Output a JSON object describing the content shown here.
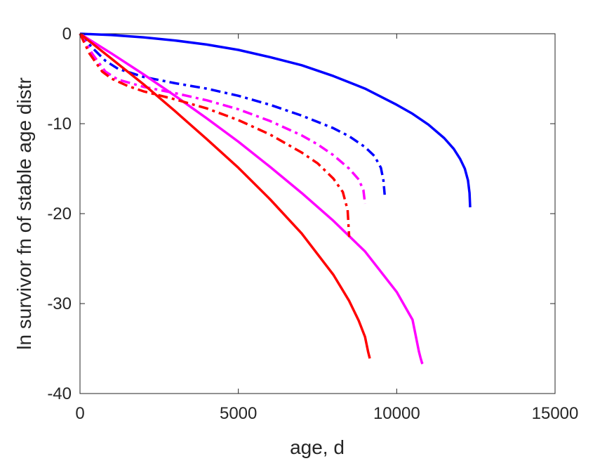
{
  "chart_data": {
    "type": "line",
    "title": "",
    "xlabel": "age, d",
    "ylabel": "ln survivor fn of stable age distr",
    "xlim": [
      0,
      15000
    ],
    "ylim": [
      -40,
      0
    ],
    "xticks": [
      0,
      5000,
      10000,
      15000
    ],
    "yticks": [
      -40,
      -30,
      -20,
      -10,
      0
    ],
    "xtick_labels": [
      "0",
      "5000",
      "10000",
      "15000"
    ],
    "ytick_labels": [
      "-40",
      "-30",
      "-20",
      "-10",
      "0"
    ],
    "grid": false,
    "legend": "none",
    "series": [
      {
        "color": "#0000ff",
        "style": "solid",
        "x": [
          0,
          1000,
          2000,
          3000,
          4000,
          5000,
          6000,
          7000,
          8000,
          9000,
          10000,
          10500,
          11000,
          11500,
          11800,
          12000,
          12150,
          12250,
          12300,
          12320
        ],
        "y": [
          0,
          -0.15,
          -0.4,
          -0.75,
          -1.2,
          -1.8,
          -2.6,
          -3.5,
          -4.7,
          -6.1,
          -7.9,
          -8.9,
          -10.1,
          -11.6,
          -12.8,
          -13.9,
          -15.0,
          -16.3,
          -17.7,
          -19.3
        ]
      },
      {
        "color": "#0000ff",
        "style": "dashdot",
        "x": [
          0,
          400,
          800,
          1200,
          2000,
          3000,
          4000,
          5000,
          6000,
          7000,
          8000,
          8500,
          9000,
          9300,
          9500,
          9580,
          9620
        ],
        "y": [
          0,
          -1.6,
          -3.0,
          -3.9,
          -4.8,
          -5.5,
          -6.1,
          -6.9,
          -7.9,
          -9.1,
          -10.5,
          -11.4,
          -12.6,
          -13.6,
          -14.9,
          -16.3,
          -17.9
        ]
      },
      {
        "color": "#ff00ff",
        "style": "solid",
        "x": [
          0,
          1000,
          2000,
          3000,
          4000,
          5000,
          6000,
          7000,
          8000,
          9000,
          10000,
          10500,
          10700,
          10750,
          10800,
          10820
        ],
        "y": [
          0,
          -2.2,
          -4.5,
          -6.9,
          -9.4,
          -12.0,
          -14.8,
          -17.7,
          -20.8,
          -24.2,
          -28.7,
          -31.8,
          -35.3,
          -36.0,
          -36.6,
          -36.7
        ]
      },
      {
        "color": "#ff00ff",
        "style": "dashdot",
        "x": [
          0,
          400,
          800,
          1200,
          2000,
          3000,
          4000,
          5000,
          6000,
          7000,
          7500,
          8000,
          8500,
          8800,
          8950,
          9000
        ],
        "y": [
          0,
          -2.3,
          -4.2,
          -5.1,
          -5.9,
          -6.6,
          -7.4,
          -8.4,
          -9.7,
          -11.3,
          -12.3,
          -13.5,
          -15.0,
          -16.2,
          -17.4,
          -18.9
        ]
      },
      {
        "color": "#ff0000",
        "style": "solid",
        "x": [
          0,
          1000,
          2000,
          3000,
          4000,
          5000,
          6000,
          7000,
          8000,
          8500,
          8800,
          9000,
          9100,
          9150
        ],
        "y": [
          0,
          -2.8,
          -5.6,
          -8.6,
          -11.7,
          -14.9,
          -18.4,
          -22.2,
          -26.8,
          -29.7,
          -31.9,
          -33.7,
          -35.4,
          -36.1
        ]
      },
      {
        "color": "#ff0000",
        "style": "dashdot",
        "x": [
          0,
          300,
          700,
          1000,
          1500,
          2000,
          3000,
          4000,
          5000,
          6000,
          7000,
          7500,
          8000,
          8300,
          8450,
          8500
        ],
        "y": [
          0,
          -2.2,
          -4.2,
          -5.0,
          -5.8,
          -6.4,
          -7.3,
          -8.3,
          -9.6,
          -11.2,
          -13.2,
          -14.4,
          -16.1,
          -17.6,
          -19.6,
          -22.6
        ]
      }
    ]
  }
}
